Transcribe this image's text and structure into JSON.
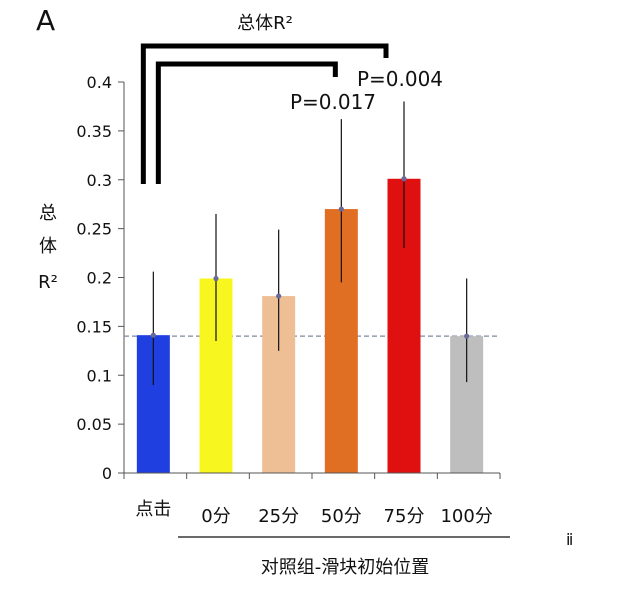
{
  "chart_data": {
    "type": "bar",
    "panel_label": "A",
    "title": "总体R²",
    "ylabel_lines": [
      "总",
      "体",
      "R²"
    ],
    "xlabel": "对照组-滑块初始位置",
    "categories": [
      "点击",
      "0分",
      "25分",
      "50分",
      "75分",
      "100分"
    ],
    "values": [
      0.141,
      0.199,
      0.181,
      0.27,
      0.301,
      0.14
    ],
    "error_high": [
      0.206,
      0.265,
      0.249,
      0.362,
      0.38,
      0.199
    ],
    "error_low": [
      0.09,
      0.135,
      0.125,
      0.195,
      0.23,
      0.093
    ],
    "colors": [
      "#1f3fe0",
      "#f7f71f",
      "#eebf95",
      "#e06e23",
      "#e01010",
      "#bebebe"
    ],
    "ylim": [
      0,
      0.4
    ],
    "yticks": [
      "0",
      "0.05",
      "0.1",
      "0.15",
      "0.2",
      "0.25",
      "0.3",
      "0.35",
      "0.4"
    ],
    "baseline_value": 0.14,
    "significance": [
      {
        "from": 0,
        "to": 4,
        "label": "P=0.004"
      },
      {
        "from": 0,
        "to": 3,
        "label": "P=0.017"
      }
    ],
    "grid": false,
    "legend": "none",
    "stray_text": "ⅱ"
  }
}
